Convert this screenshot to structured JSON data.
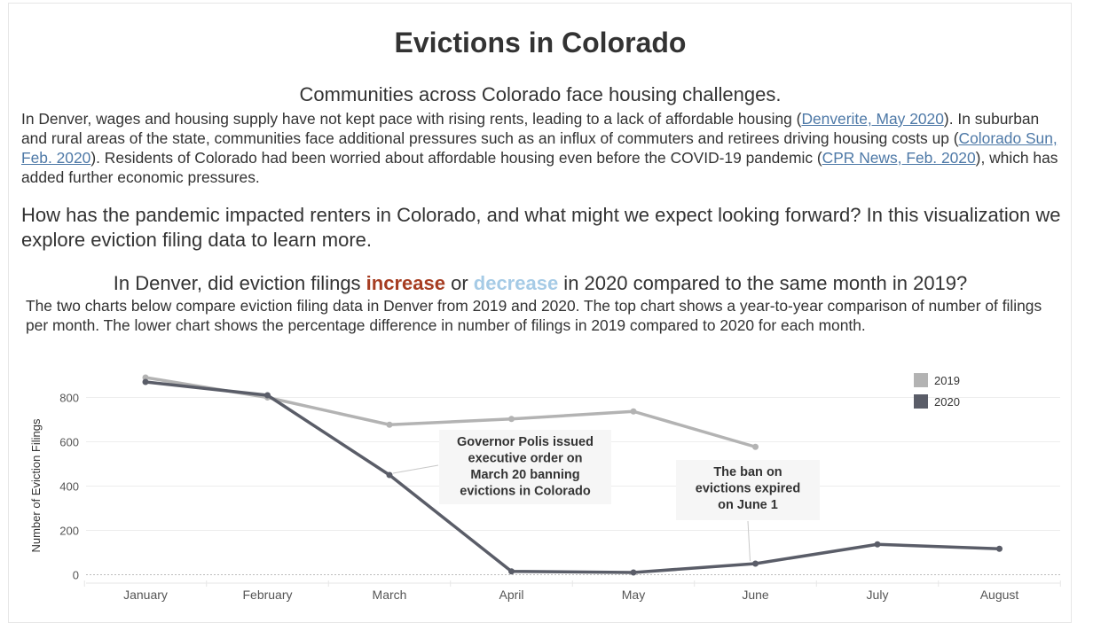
{
  "page": {
    "title": "Evictions in Colorado",
    "subtitle": "Communities across Colorado face housing challenges.",
    "intro": {
      "p1": "In Denver, wages and housing supply have not kept pace with rising rents, leading to a lack of affordable housing (",
      "link1": "Denverite, May 2020",
      "p2": "). In suburban and rural areas of the state, communities face additional pressures such as an influx of commuters and retirees driving housing costs up (",
      "link2": "Colorado Sun, Feb. 2020",
      "p3": "). Residents of Colorado had been worried about affordable housing even before the COVID-19 pandemic (",
      "link3": "CPR News, Feb. 2020",
      "p4": "), which has added further economic pressures."
    },
    "question": "How has the pandemic impacted renters in Colorado, and what might we expect looking forward? In this visualization we explore eviction filing data to learn more.",
    "chart_question": {
      "pre": "In Denver, did eviction filings ",
      "increase": "increase",
      "mid": " or ",
      "decrease": "decrease",
      "post": " in 2020 compared to the same month in 2019?"
    },
    "chart_desc": "The two charts below compare eviction filing data in Denver from 2019 and 2020. The top chart shows a year-to-year comparison of number of filings per month. The lower chart shows the percentage difference in number of filings in 2019 compared to 2020 for each month."
  },
  "chart_data": {
    "type": "line",
    "title": "",
    "xlabel": "",
    "ylabel": "Number of Eviction Filings",
    "categories": [
      "January",
      "February",
      "March",
      "April",
      "May",
      "June",
      "July",
      "August"
    ],
    "ylim": [
      0,
      900
    ],
    "yticks": [
      0,
      200,
      400,
      600,
      800
    ],
    "grid": true,
    "legend_position": "top-right",
    "series": [
      {
        "name": "2019",
        "color": "#b3b3b3",
        "values": [
          890,
          800,
          677,
          703,
          737,
          577,
          null,
          null
        ]
      },
      {
        "name": "2020",
        "color": "#5a5d68",
        "values": [
          870,
          810,
          450,
          15,
          10,
          50,
          137,
          117
        ]
      }
    ],
    "annotations": [
      {
        "text": "Governor Polis issued executive order on March 20 banning evictions in Colorado",
        "lines": [
          "Governor Polis issued",
          "executive order on",
          "March 20 banning",
          "evictions in Colorado"
        ],
        "target_category": "March",
        "target_series": "2020"
      },
      {
        "text": "The ban on evictions expired on June 1",
        "lines": [
          "The ban on",
          "evictions expired",
          "on June 1"
        ],
        "target_category": "June",
        "target_series": "2020"
      }
    ]
  }
}
